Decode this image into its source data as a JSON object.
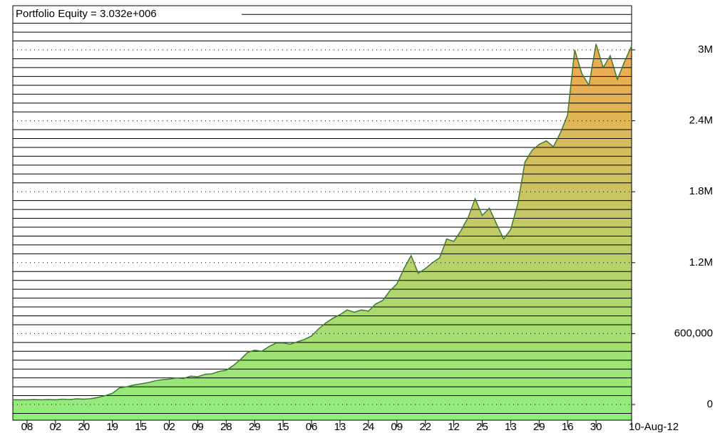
{
  "chart_data": {
    "type": "area",
    "title": "Portfolio Equity = 3.032e+006",
    "categories": [
      null,
      null,
      "08",
      null,
      null,
      null,
      "02",
      null,
      null,
      null,
      "20",
      null,
      null,
      null,
      "19",
      null,
      null,
      null,
      "15",
      null,
      null,
      null,
      "02",
      null,
      null,
      null,
      "09",
      null,
      null,
      null,
      "28",
      null,
      null,
      null,
      "29",
      null,
      null,
      null,
      "15",
      null,
      null,
      null,
      "06",
      null,
      null,
      null,
      "13",
      null,
      null,
      null,
      "24",
      null,
      null,
      null,
      "09",
      null,
      null,
      null,
      "22",
      null,
      null,
      null,
      "12",
      null,
      null,
      null,
      "25",
      null,
      null,
      null,
      "13",
      null,
      null,
      null,
      "29",
      null,
      null,
      null,
      "16",
      null,
      null,
      null,
      "30",
      null,
      null,
      null,
      null,
      "10-Aug-12"
    ],
    "values": [
      40000,
      40000,
      40000,
      42000,
      40000,
      42000,
      40000,
      45000,
      42000,
      48000,
      45000,
      50000,
      60000,
      75000,
      95000,
      140000,
      150000,
      165000,
      175000,
      185000,
      200000,
      210000,
      215000,
      225000,
      220000,
      240000,
      235000,
      255000,
      260000,
      280000,
      290000,
      330000,
      380000,
      440000,
      460000,
      450000,
      490000,
      520000,
      520000,
      510000,
      530000,
      550000,
      580000,
      640000,
      690000,
      730000,
      760000,
      800000,
      780000,
      800000,
      790000,
      850000,
      880000,
      960000,
      1020000,
      1150000,
      1260000,
      1110000,
      1150000,
      1200000,
      1240000,
      1400000,
      1380000,
      1470000,
      1580000,
      1740000,
      1600000,
      1660000,
      1530000,
      1400000,
      1480000,
      1700000,
      2050000,
      2150000,
      2200000,
      2230000,
      2180000,
      2300000,
      2450000,
      3000000,
      2800000,
      2700000,
      3050000,
      2850000,
      2950000,
      2750000,
      2900000,
      3032000
    ],
    "line_color": "#3f7a35",
    "fill_colors": [
      "#f2a84e",
      "#90ee7c"
    ],
    "ylim": [
      -132530,
      3373500
    ],
    "yticks": [
      0,
      {
        "value": 600000,
        "label": "600,000"
      },
      {
        "value": 1200000,
        "label": "1.2M"
      },
      {
        "value": 1800000,
        "label": "1.8M"
      },
      {
        "value": 2400000,
        "label": "2.4M"
      },
      {
        "value": 3000000,
        "label": "3M"
      }
    ],
    "grid": true
  }
}
